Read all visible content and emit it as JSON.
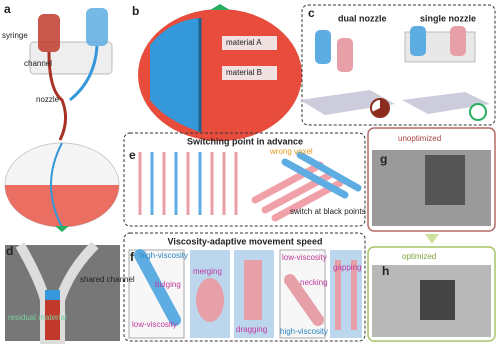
{
  "panels": [
    {
      "label": "a",
      "annotations": [
        "syringe",
        "channel",
        "nozzle"
      ]
    },
    {
      "label": "b",
      "annotations": [
        "material A",
        "material B"
      ]
    },
    {
      "label": "c",
      "annotations": [
        "dual nozzle",
        "single nozzle"
      ]
    },
    {
      "label": "d",
      "annotations": [
        "shared channel",
        "residual material"
      ]
    },
    {
      "label": "e",
      "title": "Switching point in advance",
      "annotations": [
        "wrong voxel",
        "switch at black points"
      ]
    },
    {
      "label": "f",
      "title": "Viscosity-adaptive movement speed",
      "annotations": [
        "high-viscosity",
        "bulging",
        "low-viscosity",
        "merging",
        "dragging",
        "low-viscosity",
        "necking",
        "gapping",
        "high-viscosity"
      ]
    },
    {
      "label": "g",
      "annotations": [
        "unoptimized"
      ]
    },
    {
      "label": "h",
      "annotations": [
        "optimized"
      ]
    }
  ]
}
